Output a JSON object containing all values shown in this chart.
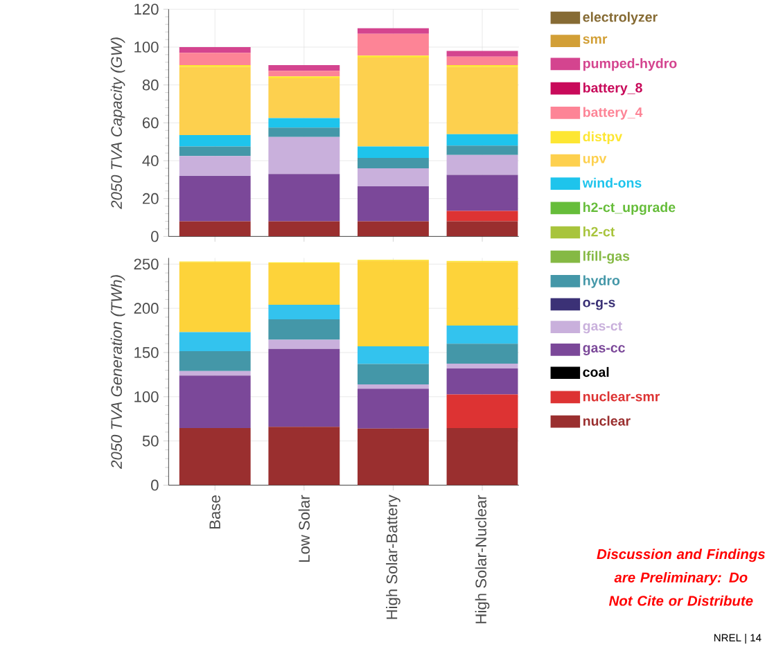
{
  "chart_data": [
    {
      "type": "bar",
      "stacked": true,
      "ylabel": "2050 TVA Capacity (GW)",
      "categories": [
        null,
        null,
        null,
        null
      ],
      "ylim": [
        0,
        120
      ],
      "yticks": [
        0,
        20,
        40,
        60,
        80,
        100,
        120
      ],
      "grid": true,
      "legend": "right",
      "tick_labels": "y",
      "series": [
        {
          "name": "nuclear",
          "color": "#9a2f2f",
          "values": [
            8,
            8,
            8,
            8
          ]
        },
        {
          "name": "nuclear-smr",
          "color": "#dd3333",
          "values": [
            0,
            0,
            0,
            5.5
          ]
        },
        {
          "name": "coal",
          "color": "#000000",
          "values": [
            0,
            0,
            0,
            0
          ]
        },
        {
          "name": "gas-cc",
          "color": "#7b4899",
          "values": [
            24,
            25,
            18.5,
            19
          ]
        },
        {
          "name": "gas-ct",
          "color": "#c9b0dc",
          "values": [
            10.5,
            19.5,
            9.5,
            10.5
          ]
        },
        {
          "name": "o-g-s",
          "color": "#3b3176",
          "values": [
            0,
            0,
            0,
            0
          ]
        },
        {
          "name": "hydro",
          "color": "#4497a8",
          "values": [
            5,
            5,
            5.5,
            5
          ]
        },
        {
          "name": "lfill-gas",
          "color": "#85b944",
          "values": [
            0,
            0,
            0,
            0
          ]
        },
        {
          "name": "h2-ct",
          "color": "#a8c43c",
          "values": [
            0,
            0,
            0,
            0
          ]
        },
        {
          "name": "h2-ct_upgrade",
          "color": "#66bd3a",
          "values": [
            0,
            0,
            0,
            0
          ]
        },
        {
          "name": "wind-ons",
          "color": "#1ec4ec",
          "values": [
            6,
            5,
            6,
            6
          ]
        },
        {
          "name": "upv",
          "color": "#fdd04e",
          "values": [
            36,
            21,
            47,
            35.5
          ]
        },
        {
          "name": "distpv",
          "color": "#fde633",
          "values": [
            1,
            1,
            1,
            1
          ]
        },
        {
          "name": "battery_4",
          "color": "#fd8496",
          "values": [
            6.5,
            3,
            11.5,
            4.5
          ]
        },
        {
          "name": "battery_8",
          "color": "#c80a5a",
          "values": [
            0,
            0,
            0,
            0
          ]
        },
        {
          "name": "pumped-hydro",
          "color": "#d4448f",
          "values": [
            3,
            3,
            3,
            3
          ]
        },
        {
          "name": "smr",
          "color": "#d29f36",
          "values": [
            0,
            0,
            0,
            0
          ]
        },
        {
          "name": "electrolyzer",
          "color": "#866b34",
          "values": [
            0,
            0,
            0,
            0
          ]
        }
      ]
    },
    {
      "type": "bar",
      "stacked": true,
      "ylabel": "2050 TVA Generation (TWh)",
      "categories": [
        "Base",
        "Low Solar",
        "High Solar-Battery",
        "High Solar-Nuclear"
      ],
      "ylim": [
        0,
        257
      ],
      "yticks": [
        0,
        50,
        100,
        150,
        200,
        250
      ],
      "grid": true,
      "annotations": [
        "Discussion and Findings are Preliminary: Do Not Cite or Distribute",
        "NREL   |   14"
      ],
      "series": [
        {
          "color": "#9a2f2f",
          "values": [
            64.5,
            66,
            64,
            64.5
          ]
        },
        {
          "color": "#dd3333",
          "values": [
            0,
            0,
            0,
            38
          ]
        },
        {
          "color": "#7b4899",
          "values": [
            59.5,
            88,
            45,
            29.5
          ]
        },
        {
          "color": "#c9b0dc",
          "values": [
            5,
            10.5,
            5,
            5.5
          ]
        },
        {
          "color": "#4497a8",
          "values": [
            22.5,
            23,
            23,
            22.5
          ]
        },
        {
          "color": "#33c3ee",
          "values": [
            21.5,
            16.5,
            20,
            20.5
          ]
        },
        {
          "color": "#fdd33a",
          "values": [
            79,
            47,
            97,
            72
          ]
        },
        {
          "color": "#fde633",
          "values": [
            1,
            1,
            1,
            1
          ]
        }
      ]
    }
  ]
}
